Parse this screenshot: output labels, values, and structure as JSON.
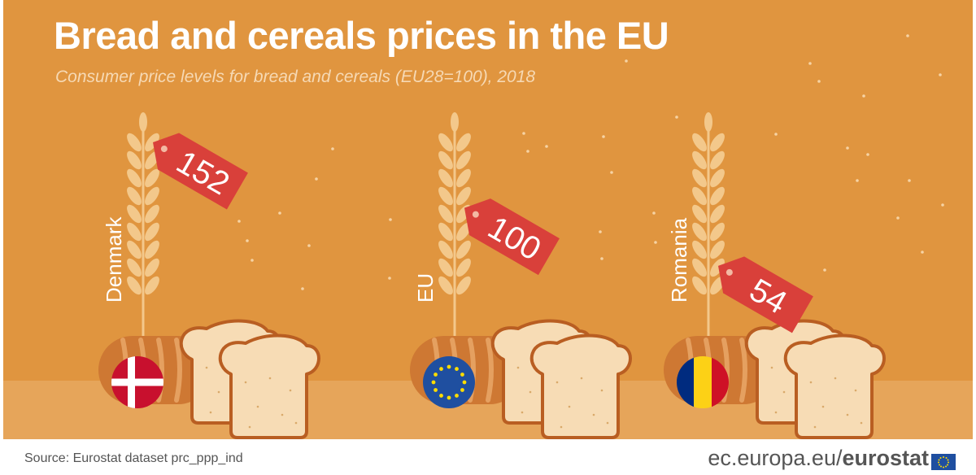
{
  "chart_data": {
    "type": "bar",
    "title": "Bread and cereals prices in the EU",
    "subtitle": "Consumer price levels for bread and cereals (EU28=100), 2018",
    "categories": [
      "Denmark",
      "EU",
      "Romania"
    ],
    "values": [
      152,
      100,
      54
    ],
    "value_labels": [
      "152",
      "100",
      "54"
    ],
    "flags": [
      "denmark-flag",
      "eu-flag",
      "romania-flag"
    ]
  },
  "footer": {
    "source": "Source: Eurostat dataset prc_ppp_ind",
    "site": "ec.europa.eu/",
    "brand": "eurostat"
  },
  "colors": {
    "background": "#e0953f",
    "ground": "#e6a55a",
    "tag": "#d9403a",
    "wheat": "#f3c88b",
    "bread": "#f7dcb5",
    "crust": "#b95e22"
  },
  "icons": [
    "wheat-icon",
    "price-tag-icon",
    "baguette-icon",
    "bread-slice-icon",
    "eu-logo-icon"
  ]
}
